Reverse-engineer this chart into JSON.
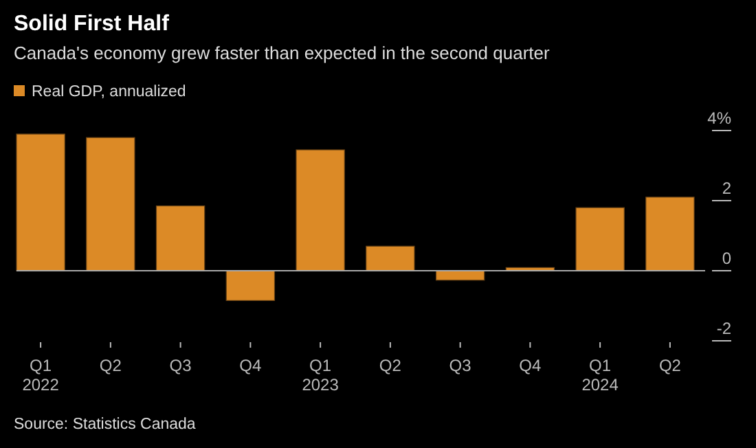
{
  "chart_data": {
    "type": "bar",
    "title": "Solid First Half",
    "subtitle": "Canada's economy grew faster than expected in the second quarter",
    "categories": [
      "Q1\n2022",
      "Q2",
      "Q3",
      "Q4",
      "Q1\n2023",
      "Q2",
      "Q3",
      "Q4",
      "Q1\n2024",
      "Q2"
    ],
    "series": [
      {
        "name": "Real GDP, annualized",
        "color": "#dc8a26",
        "values": [
          3.9,
          3.8,
          1.85,
          -0.85,
          3.45,
          0.7,
          -0.27,
          0.09,
          1.8,
          2.1
        ]
      }
    ],
    "ylim": [
      -2,
      4
    ],
    "yticks": [
      {
        "value": 4,
        "label": "4%"
      },
      2,
      0,
      -2
    ],
    "legend": "top left",
    "annotations": [
      "Source: Statistics Canada"
    ]
  }
}
